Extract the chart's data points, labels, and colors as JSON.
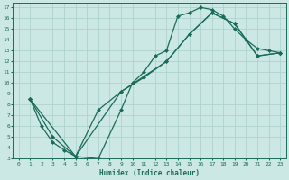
{
  "xlabel": "Humidex (Indice chaleur)",
  "background_color": "#cce8e4",
  "grid_color": "#aacfcb",
  "line_color": "#1a6b5a",
  "xlim": [
    -0.5,
    23.5
  ],
  "ylim": [
    3,
    17.4
  ],
  "xticks": [
    0,
    1,
    2,
    3,
    4,
    5,
    6,
    7,
    8,
    9,
    10,
    11,
    12,
    13,
    14,
    15,
    16,
    17,
    18,
    19,
    20,
    21,
    22,
    23
  ],
  "yticks": [
    3,
    4,
    5,
    6,
    7,
    8,
    9,
    10,
    11,
    12,
    13,
    14,
    15,
    16,
    17
  ],
  "line1_x": [
    1,
    2,
    3,
    4,
    5,
    7,
    9,
    10,
    11,
    12,
    13,
    14,
    15,
    16,
    17,
    18,
    19,
    20,
    21,
    22,
    23
  ],
  "line1_y": [
    8.5,
    6.0,
    4.5,
    3.8,
    3.2,
    3.0,
    7.5,
    10.0,
    11.0,
    12.5,
    13.0,
    16.2,
    16.5,
    17.0,
    16.8,
    16.2,
    15.0,
    14.0,
    13.2,
    13.0,
    12.8
  ],
  "line2_x": [
    1,
    3,
    5,
    7,
    9,
    11,
    13,
    15,
    17,
    19,
    21,
    23
  ],
  "line2_y": [
    8.5,
    5.0,
    3.2,
    7.5,
    9.2,
    10.5,
    12.0,
    14.5,
    16.5,
    15.5,
    12.5,
    12.8
  ],
  "line3_x": [
    1,
    5,
    9,
    13,
    15,
    17,
    19,
    21,
    23
  ],
  "line3_y": [
    8.5,
    3.2,
    9.2,
    12.0,
    14.5,
    16.5,
    15.5,
    12.5,
    12.8
  ]
}
